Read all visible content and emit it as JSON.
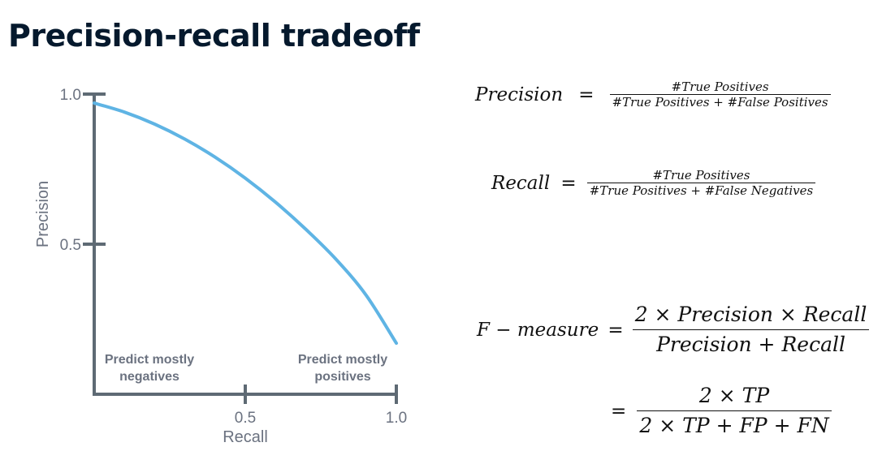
{
  "title": "Precision-recall tradeoff",
  "chart_data": {
    "type": "line",
    "xlabel": "Recall",
    "ylabel": "Precision",
    "xlim": [
      0,
      1.0
    ],
    "ylim": [
      0,
      1.0
    ],
    "x_ticks": [
      "0.5",
      "1.0"
    ],
    "y_ticks": [
      "0.5",
      "1.0"
    ],
    "grid": false,
    "series": [
      {
        "color": "#5fb4e4",
        "x": [
          0.0,
          0.1,
          0.2,
          0.3,
          0.4,
          0.5,
          0.6,
          0.7,
          0.8,
          0.9,
          1.0
        ],
        "y": [
          0.97,
          0.94,
          0.9,
          0.85,
          0.79,
          0.72,
          0.64,
          0.55,
          0.45,
          0.33,
          0.17
        ]
      }
    ],
    "annotations": [
      {
        "line1": "Predict mostly",
        "line2": "negatives"
      },
      {
        "line1": "Predict mostly",
        "line2": "positives"
      }
    ],
    "axis_color": "#5e6a74"
  },
  "equations": {
    "precision": {
      "lhs": "Precision",
      "op": "=",
      "num": "#True Positives",
      "den": "#True Positives + #False Positives"
    },
    "recall": {
      "lhs": "Recall",
      "op": "=",
      "num": "#True Positives",
      "den": "#True Positives + #False Negatives"
    },
    "fmeasure": {
      "lhs": "F − measure",
      "op": "=",
      "num": "2 × Precision × Recall",
      "den": "Precision + Recall"
    },
    "fmeasure2": {
      "op": "=",
      "num": "2 × TP",
      "den": "2 × TP + FP + FN"
    }
  }
}
